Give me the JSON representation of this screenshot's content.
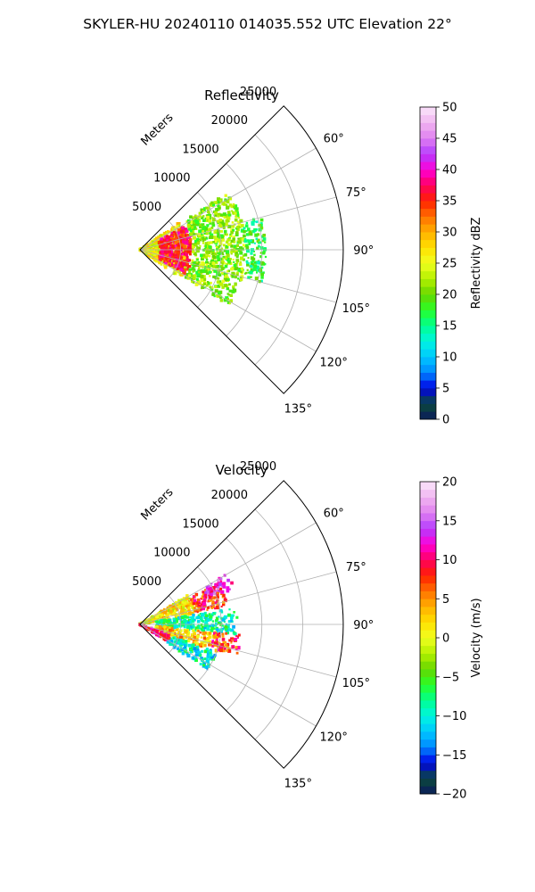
{
  "figure_title": "SKYLER-HU  20240110  014035.552 UTC Elevation 22°",
  "chart_data": [
    {
      "type": "heatmap",
      "subtype": "polar-sector (PPI radar sweep)",
      "title": "Reflectivity",
      "radial_axis_label": "Meters",
      "radial_ticks": [
        5000,
        10000,
        15000,
        20000,
        25000
      ],
      "radial_tick_labels": [
        "5000",
        "10000",
        "15000",
        "20000",
        "25000"
      ],
      "rlim": [
        0,
        25000
      ],
      "angle_ticks_deg": [
        60,
        75,
        90,
        105,
        120,
        135
      ],
      "angle_tick_labels": [
        "60°",
        "75°",
        "90°",
        "105°",
        "120°",
        "135°"
      ],
      "theta_range_deg": [
        45,
        135
      ],
      "grid": true,
      "colorbar": {
        "label": "Reflectivity dBZ",
        "range": [
          0,
          50
        ],
        "ticks": [
          0,
          5,
          10,
          15,
          20,
          25,
          30,
          35,
          40,
          45,
          50
        ],
        "tick_labels": [
          "0",
          "5",
          "10",
          "15",
          "20",
          "25",
          "30",
          "35",
          "40",
          "45",
          "50"
        ],
        "colormap_stops": [
          {
            "v": 0,
            "color": "#0b1a5c"
          },
          {
            "v": 2.5,
            "color": "#0b4a3a"
          },
          {
            "v": 5,
            "color": "#0000e6"
          },
          {
            "v": 7.5,
            "color": "#0088ff"
          },
          {
            "v": 10,
            "color": "#00c8ff"
          },
          {
            "v": 12.5,
            "color": "#00f5e0"
          },
          {
            "v": 15,
            "color": "#00ff90"
          },
          {
            "v": 17.5,
            "color": "#28ff28"
          },
          {
            "v": 20,
            "color": "#66d600"
          },
          {
            "v": 22.5,
            "color": "#b4f000"
          },
          {
            "v": 25,
            "color": "#f0ff20"
          },
          {
            "v": 27.5,
            "color": "#ffe000"
          },
          {
            "v": 30,
            "color": "#ffb000"
          },
          {
            "v": 32.5,
            "color": "#ff7000"
          },
          {
            "v": 35,
            "color": "#ff2000"
          },
          {
            "v": 37.5,
            "color": "#ff0060"
          },
          {
            "v": 40,
            "color": "#ff00d8"
          },
          {
            "v": 42.5,
            "color": "#b43cff"
          },
          {
            "v": 45,
            "color": "#e080f0"
          },
          {
            "v": 47.5,
            "color": "#f0b4f0"
          },
          {
            "v": 50,
            "color": "#fbe6fb"
          }
        ]
      },
      "data_regions": [
        {
          "r_range_m": [
            0,
            6000
          ],
          "theta_range_deg": [
            55,
            125
          ],
          "value_dbz": 26,
          "note": "near-range yellow/orange"
        },
        {
          "r_range_m": [
            2500,
            6500
          ],
          "theta_range_deg": [
            62,
            118
          ],
          "value_dbz": 36,
          "note": "red ring"
        },
        {
          "r_range_m": [
            6500,
            13000
          ],
          "theta_range_deg": [
            57,
            122
          ],
          "value_dbz": 21,
          "note": "green/yellow echo"
        },
        {
          "r_range_m": [
            13000,
            15500
          ],
          "theta_range_deg": [
            75,
            105
          ],
          "value_dbz": 17,
          "note": "outer fringe"
        }
      ]
    },
    {
      "type": "heatmap",
      "subtype": "polar-sector (PPI radar sweep)",
      "title": "Velocity",
      "radial_axis_label": "Meters",
      "radial_ticks": [
        5000,
        10000,
        15000,
        20000,
        25000
      ],
      "radial_tick_labels": [
        "5000",
        "10000",
        "15000",
        "20000",
        "25000"
      ],
      "rlim": [
        0,
        25000
      ],
      "angle_ticks_deg": [
        60,
        75,
        90,
        105,
        120,
        135
      ],
      "angle_tick_labels": [
        "60°",
        "75°",
        "90°",
        "105°",
        "120°",
        "135°"
      ],
      "theta_range_deg": [
        45,
        135
      ],
      "grid": true,
      "colorbar": {
        "label": "Velocity (m/s)",
        "range": [
          -20,
          20
        ],
        "ticks": [
          -20,
          -15,
          -10,
          -5,
          0,
          5,
          10,
          15,
          20
        ],
        "tick_labels": [
          "−20",
          "−15",
          "−10",
          "−5",
          "0",
          "5",
          "10",
          "15",
          "20"
        ],
        "colormap_stops": [
          {
            "v": -20,
            "color": "#0b1a5c"
          },
          {
            "v": -18,
            "color": "#0b4a3a"
          },
          {
            "v": -16,
            "color": "#0000e6"
          },
          {
            "v": -14,
            "color": "#0088ff"
          },
          {
            "v": -12,
            "color": "#00c8ff"
          },
          {
            "v": -10,
            "color": "#00f5e0"
          },
          {
            "v": -8,
            "color": "#00ff90"
          },
          {
            "v": -6,
            "color": "#28ff28"
          },
          {
            "v": -4,
            "color": "#66d600"
          },
          {
            "v": -2,
            "color": "#b4f000"
          },
          {
            "v": 0,
            "color": "#f0ff20"
          },
          {
            "v": 2,
            "color": "#ffe000"
          },
          {
            "v": 4,
            "color": "#ffb000"
          },
          {
            "v": 6,
            "color": "#ff7000"
          },
          {
            "v": 8,
            "color": "#ff2000"
          },
          {
            "v": 10,
            "color": "#ff0060"
          },
          {
            "v": 12,
            "color": "#ff00d8"
          },
          {
            "v": 14,
            "color": "#b43cff"
          },
          {
            "v": 16,
            "color": "#e080f0"
          },
          {
            "v": 18,
            "color": "#f0b4f0"
          },
          {
            "v": 20,
            "color": "#fbe6fb"
          }
        ]
      },
      "data_regions": [
        {
          "r_range_m": [
            0,
            7000
          ],
          "theta_range_deg": [
            58,
            80
          ],
          "value_ms": 1,
          "note": "yellow"
        },
        {
          "r_range_m": [
            7000,
            11000
          ],
          "theta_range_deg": [
            62,
            78
          ],
          "value_ms": 8,
          "note": "red"
        },
        {
          "r_range_m": [
            9000,
            12500
          ],
          "theta_range_deg": [
            60,
            70
          ],
          "value_ms": 13,
          "note": "magenta"
        },
        {
          "r_range_m": [
            2000,
            12000
          ],
          "theta_range_deg": [
            80,
            96
          ],
          "value_ms": -9,
          "note": "green/cyan"
        },
        {
          "r_range_m": [
            2000,
            10000
          ],
          "theta_range_deg": [
            96,
            110
          ],
          "value_ms": 3,
          "note": "yellow/orange"
        },
        {
          "r_range_m": [
            9000,
            12500
          ],
          "theta_range_deg": [
            96,
            108
          ],
          "value_ms": 8,
          "note": "red"
        },
        {
          "r_range_m": [
            4000,
            10000
          ],
          "theta_range_deg": [
            110,
            124
          ],
          "value_ms": -10,
          "note": "cyan/green"
        },
        {
          "r_range_m": [
            0,
            4000
          ],
          "theta_range_deg": [
            110,
            122
          ],
          "value_ms": 10,
          "note": "magenta near origin"
        }
      ]
    }
  ]
}
